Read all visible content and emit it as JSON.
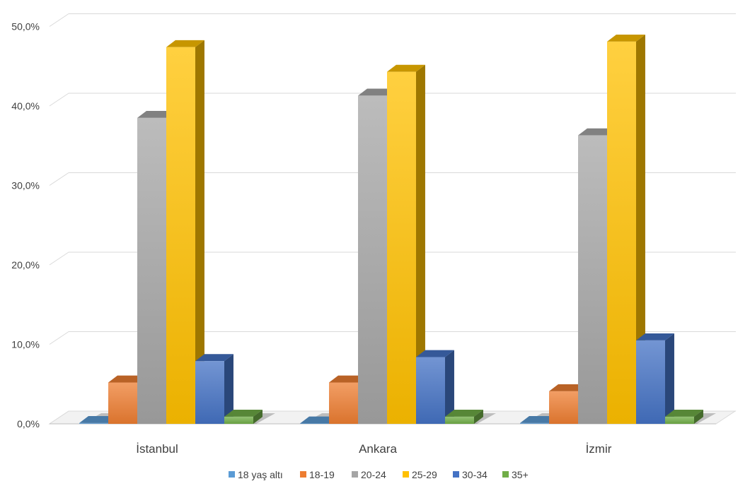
{
  "chart_data": {
    "type": "bar",
    "categories": [
      "İstanbul",
      "Ankara",
      "İzmir"
    ],
    "ylim": [
      0,
      0.5
    ],
    "y_ticks": [
      "0,0%",
      "10,0%",
      "20,0%",
      "30,0%",
      "40,0%",
      "50,0%"
    ],
    "y_tick_values": [
      0,
      0.1,
      0.2,
      0.3,
      0.4,
      0.5
    ],
    "grid": true,
    "legend_position": "bottom",
    "series": [
      {
        "name": "18 yaş altı",
        "color": "#5B9BD5",
        "values": [
          0.001,
          0.0,
          0.001
        ]
      },
      {
        "name": "18-19",
        "color": "#ED7D31",
        "values": [
          0.052,
          0.052,
          0.041
        ]
      },
      {
        "name": "20-24",
        "color": "#A5A5A5",
        "values": [
          0.385,
          0.413,
          0.363
        ]
      },
      {
        "name": "25-29",
        "color": "#FFC000",
        "values": [
          0.474,
          0.443,
          0.481
        ]
      },
      {
        "name": "30-34",
        "color": "#4472C4",
        "values": [
          0.079,
          0.084,
          0.105
        ]
      },
      {
        "name": "35+",
        "color": "#70AD47",
        "values": [
          0.009,
          0.009,
          0.009
        ]
      }
    ]
  }
}
